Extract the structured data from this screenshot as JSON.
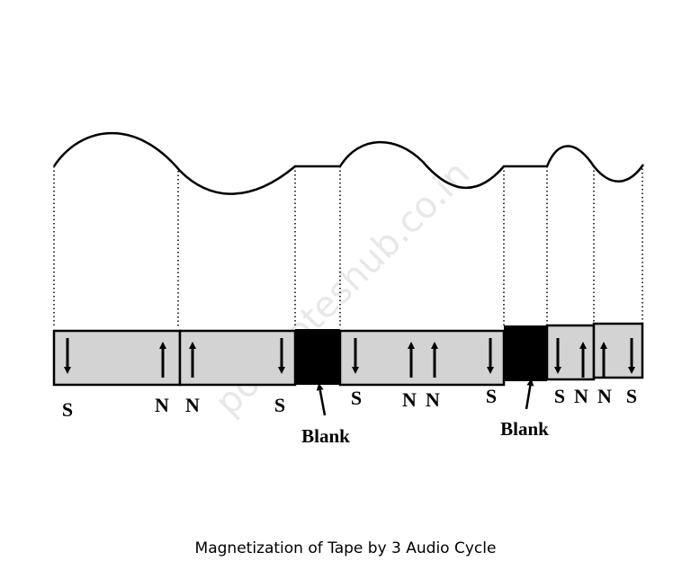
{
  "diagram": {
    "poles": [
      "S",
      "N",
      "N",
      "S",
      "S",
      "N",
      "N",
      "S",
      "S",
      "N",
      "N",
      "S"
    ],
    "blank_labels": [
      "Blank",
      "Blank"
    ]
  },
  "watermark": "polynoteshub.co.in",
  "caption": "Magnetization of Tape by 3 Audio Cycle"
}
